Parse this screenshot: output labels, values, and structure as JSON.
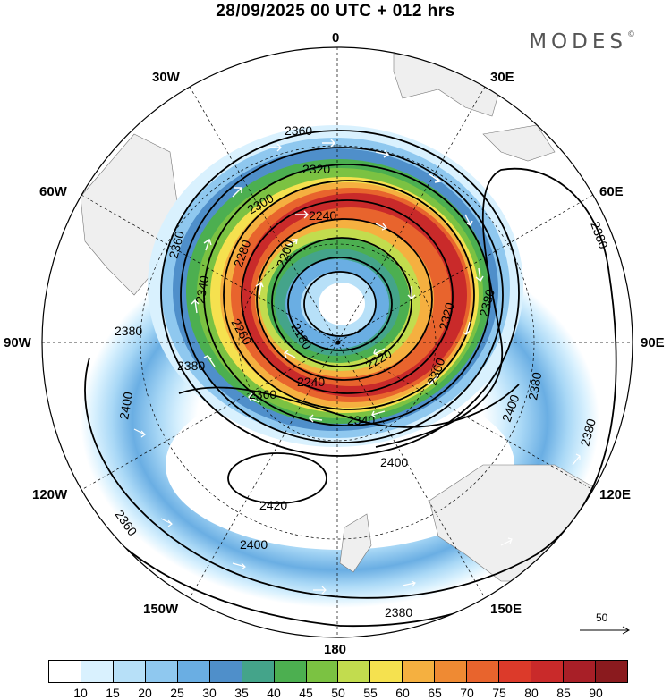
{
  "title": "28/09/2025  00 UTC  + 012 hrs",
  "brand": "MODES",
  "brand_mark": "©",
  "longitude_labels": {
    "n0": "0",
    "e30": "30E",
    "e60": "60E",
    "e90": "90E",
    "e120": "120E",
    "e150": "150E",
    "n180": "180",
    "w150": "150W",
    "w120": "120W",
    "w90": "90W",
    "w60": "60W",
    "w30": "30W"
  },
  "contour_labels": [
    "2360",
    "2320",
    "2300",
    "2240",
    "2360",
    "2340",
    "2280",
    "2200",
    "2180",
    "2260",
    "2380",
    "2380",
    "2240",
    "2360",
    "2220",
    "2320",
    "2380",
    "2360",
    "2340",
    "2400",
    "2400",
    "2420",
    "2400",
    "2380",
    "2380",
    "2360",
    "2380",
    "2400",
    "2380"
  ],
  "reference_vector": {
    "label": "50"
  },
  "colorbar": {
    "colors": [
      "#ffffff",
      "#d9f1fe",
      "#b7e0f8",
      "#8fc8ef",
      "#6aaee3",
      "#4f8fca",
      "#44a48a",
      "#4caf50",
      "#7bc242",
      "#c2dc4e",
      "#f5e14f",
      "#f5b040",
      "#ef8a33",
      "#e8642d",
      "#dc3a2a",
      "#c92a2a",
      "#a81f27",
      "#8a1a1e"
    ],
    "ticks": [
      "10",
      "15",
      "20",
      "25",
      "30",
      "35",
      "40",
      "45",
      "50",
      "55",
      "60",
      "65",
      "70",
      "75",
      "80",
      "85",
      "90"
    ]
  }
}
